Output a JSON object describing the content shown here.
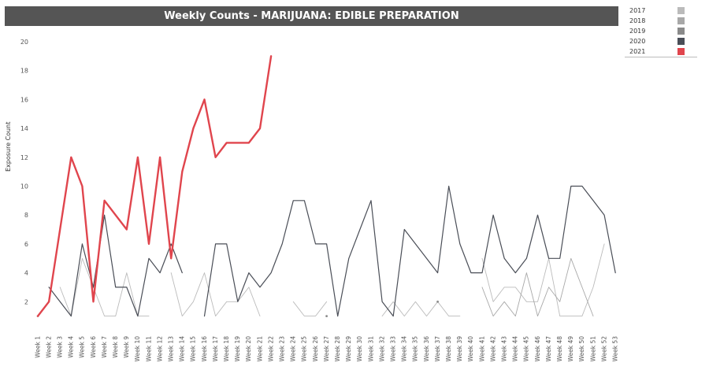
{
  "chart_data": {
    "type": "line",
    "title": "Weekly Counts - MARIJUANA: EDIBLE PREPARATION",
    "ylabel": "Exposure Count",
    "xlabel": "",
    "ylim": [
      0,
      20
    ],
    "yticks": [
      2,
      4,
      6,
      8,
      10,
      12,
      14,
      16,
      18,
      20
    ],
    "grid": false,
    "legend_position": "top-right",
    "categories": [
      "Week 1",
      "Week 2",
      "Week 3",
      "Week 4",
      "Week 5",
      "Week 6",
      "Week 7",
      "Week 8",
      "Week 9",
      "Week 10",
      "Week 11",
      "Week 12",
      "Week 13",
      "Week 14",
      "Week 15",
      "Week 16",
      "Week 17",
      "Week 18",
      "Week 19",
      "Week 20",
      "Week 21",
      "Week 22",
      "Week 23",
      "Week 24",
      "Week 25",
      "Week 26",
      "Week 27",
      "Week 28",
      "Week 29",
      "Week 30",
      "Week 31",
      "Week 32",
      "Week 33",
      "Week 34",
      "Week 35",
      "Week 36",
      "Week 37",
      "Week 38",
      "Week 39",
      "Week 40",
      "Week 41",
      "Week 42",
      "Week 43",
      "Week 44",
      "Week 45",
      "Week 46",
      "Week 47",
      "Week 48",
      "Week 49",
      "Week 50",
      "Week 51",
      "Week 52",
      "Week 53"
    ],
    "series": [
      {
        "name": "2017",
        "color": "#bbbbbb",
        "width": 0.9,
        "values": [
          1,
          null,
          3,
          1,
          5,
          3,
          1,
          1,
          4,
          1,
          1,
          null,
          4,
          1,
          2,
          4,
          1,
          2,
          2,
          3,
          1,
          null,
          null,
          2,
          1,
          1,
          2,
          null,
          null,
          null,
          null,
          1,
          2,
          1,
          2,
          1,
          2,
          1,
          1,
          null,
          5,
          2,
          3,
          3,
          2,
          2,
          5,
          1,
          1,
          1,
          3,
          6,
          null
        ]
      },
      {
        "name": "2018",
        "color": "#a8a8a8",
        "width": 0.9,
        "values": [
          null,
          null,
          null,
          null,
          null,
          null,
          null,
          null,
          null,
          null,
          null,
          null,
          null,
          null,
          null,
          null,
          null,
          null,
          null,
          null,
          null,
          null,
          null,
          null,
          null,
          null,
          null,
          null,
          null,
          null,
          null,
          null,
          null,
          null,
          null,
          null,
          null,
          null,
          null,
          null,
          3,
          1,
          2,
          1,
          4,
          1,
          3,
          2,
          5,
          3,
          1,
          null,
          null
        ]
      },
      {
        "name": "2019",
        "color": "#8a8a8a",
        "width": 0.9,
        "values": [
          null,
          null,
          null,
          null,
          null,
          null,
          null,
          null,
          null,
          null,
          null,
          null,
          null,
          null,
          null,
          null,
          null,
          null,
          null,
          null,
          null,
          null,
          null,
          null,
          null,
          null,
          1,
          null,
          null,
          null,
          null,
          null,
          null,
          null,
          null,
          null,
          2,
          null,
          null,
          null,
          null,
          null,
          null,
          null,
          null,
          null,
          null,
          null,
          null,
          null,
          null,
          null,
          null
        ]
      },
      {
        "name": "2020",
        "color": "#4a4e57",
        "width": 1.2,
        "values": [
          null,
          3,
          2,
          1,
          6,
          3,
          8,
          3,
          3,
          1,
          5,
          4,
          6,
          4,
          null,
          1,
          6,
          6,
          2,
          4,
          3,
          4,
          6,
          9,
          9,
          6,
          6,
          1,
          5,
          7,
          9,
          2,
          1,
          7,
          6,
          5,
          4,
          10,
          6,
          4,
          4,
          8,
          5,
          4,
          5,
          8,
          5,
          5,
          10,
          10,
          9,
          8,
          4
        ]
      },
      {
        "name": "2021",
        "color": "#e0454d",
        "width": 2.4,
        "values": [
          1,
          2,
          7,
          12,
          10,
          2,
          9,
          8,
          7,
          12,
          6,
          12,
          5,
          11,
          14,
          16,
          12,
          13,
          13,
          13,
          14,
          19,
          null,
          null,
          null,
          null,
          null,
          null,
          null,
          null,
          null,
          null,
          null,
          null,
          null,
          null,
          null,
          null,
          null,
          null,
          null,
          null,
          null,
          null,
          null,
          null,
          null,
          null,
          null,
          null,
          null,
          null,
          null
        ]
      }
    ]
  }
}
